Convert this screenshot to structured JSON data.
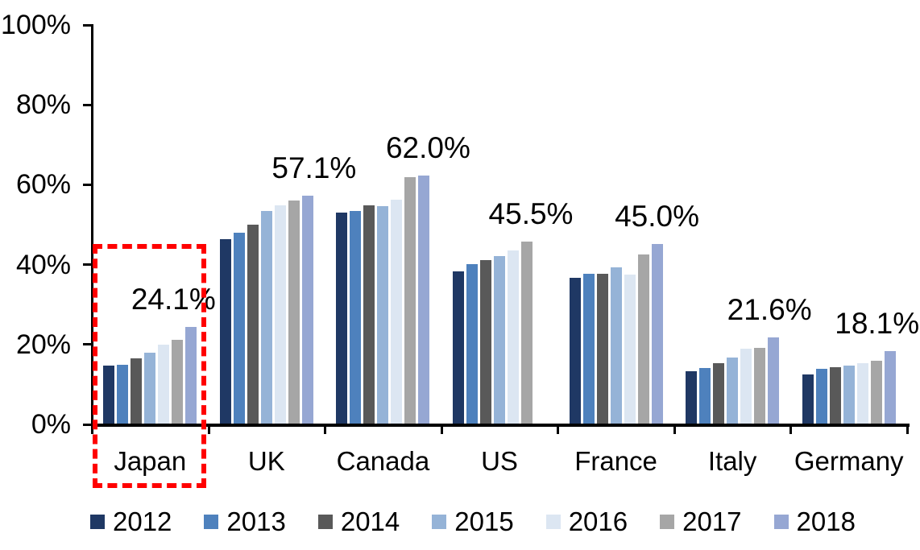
{
  "chart_data": {
    "type": "bar",
    "title": "",
    "xlabel": "",
    "ylabel": "",
    "categories": [
      "Japan",
      "UK",
      "Canada",
      "US",
      "France",
      "Italy",
      "Germany"
    ],
    "series": [
      {
        "name": "2012",
        "color": "#1F3864",
        "values": [
          14.6,
          46.2,
          52.9,
          38.2,
          36.5,
          13.2,
          12.3
        ]
      },
      {
        "name": "2013",
        "color": "#4E81BD",
        "values": [
          14.8,
          47.7,
          53.3,
          40.0,
          37.5,
          14.0,
          13.7
        ]
      },
      {
        "name": "2014",
        "color": "#595959",
        "values": [
          16.4,
          49.8,
          54.7,
          41.0,
          37.4,
          15.1,
          14.1
        ]
      },
      {
        "name": "2015",
        "color": "#95B3D7",
        "values": [
          17.8,
          53.2,
          54.5,
          42.0,
          39.1,
          16.6,
          14.5
        ]
      },
      {
        "name": "2016",
        "color": "#DCE6F2",
        "values": [
          19.7,
          54.7,
          56.1,
          43.4,
          37.2,
          18.7,
          15.2
        ]
      },
      {
        "name": "2017",
        "color": "#A6A6A6",
        "values": [
          20.9,
          55.8,
          61.7,
          45.5,
          42.3,
          19.0,
          15.7
        ]
      },
      {
        "name": "2018",
        "color": "#96A7D3",
        "values": [
          24.1,
          57.1,
          62.0,
          null,
          45.0,
          21.6,
          18.1
        ]
      }
    ],
    "data_labels": [
      {
        "category": "Japan",
        "text": "24.1%"
      },
      {
        "category": "UK",
        "text": "57.1%"
      },
      {
        "category": "Canada",
        "text": "62.0%"
      },
      {
        "category": "US",
        "text": "45.5%"
      },
      {
        "category": "France",
        "text": "45.0%"
      },
      {
        "category": "Italy",
        "text": "21.6%"
      },
      {
        "category": "Germany",
        "text": "18.1%"
      }
    ],
    "ylim": [
      0,
      100
    ],
    "ytick_labels": [
      "0%",
      "20%",
      "40%",
      "60%",
      "80%",
      "100%"
    ],
    "grid": false,
    "legend_position": "bottom",
    "axis_color": "#000000",
    "text_color": "#000000",
    "background_color": "#FFFFFF",
    "annotation": {
      "shape": "dashed-rectangle",
      "color": "#FF0000",
      "highlighted_category": "Japan"
    }
  }
}
